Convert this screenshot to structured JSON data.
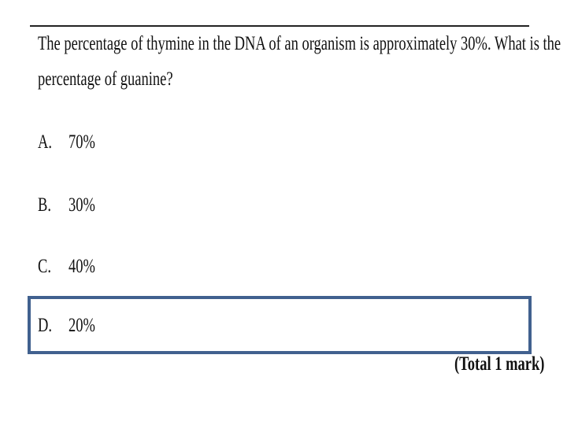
{
  "question": {
    "lines": [
      "The percentage of thymine in the DNA of an organism is approximately 30%. What is the",
      "percentage of guanine?"
    ]
  },
  "options": [
    {
      "letter": "A.",
      "text": "70%"
    },
    {
      "letter": "B.",
      "text": "30%"
    },
    {
      "letter": "C.",
      "text": "40%"
    },
    {
      "letter": "D.",
      "text": "20%"
    }
  ],
  "total": "(Total 1 mark)"
}
